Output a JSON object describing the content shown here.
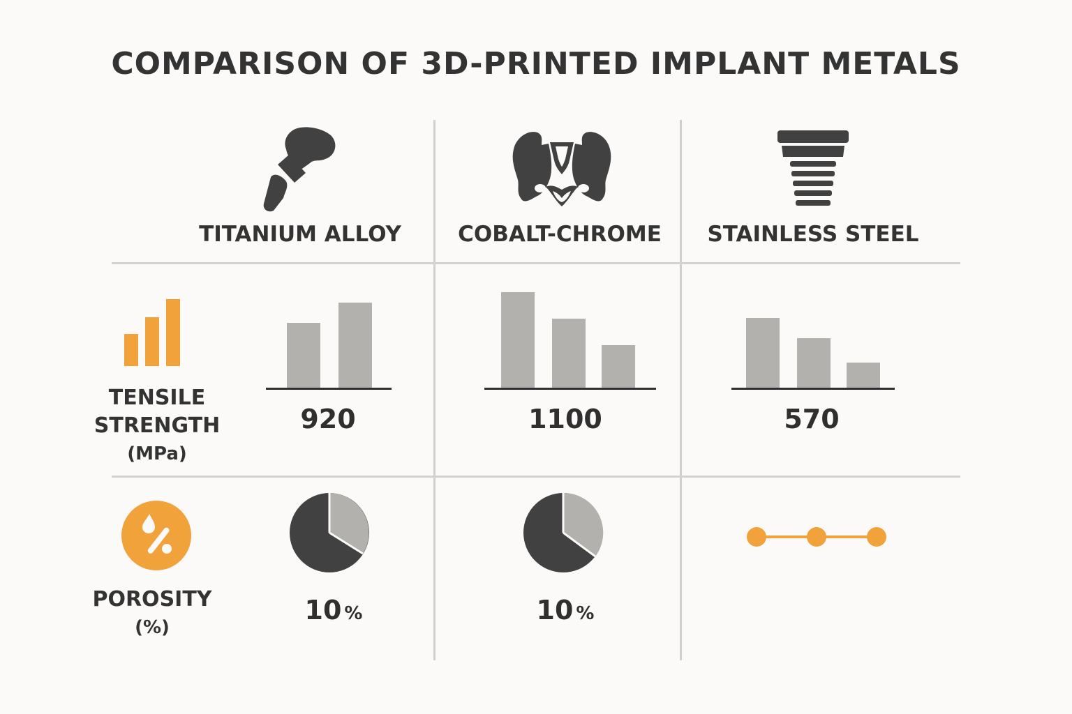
{
  "title": "COMPARISON OF 3D-PRINTED IMPLANT METALS",
  "materials": [
    {
      "name": "TITANIUM ALLOY",
      "icon": "hip-implant-icon"
    },
    {
      "name": "COBALT-CHROME",
      "icon": "pelvis-icon"
    },
    {
      "name": "STAINLESS STEEL",
      "icon": "screw-implant-icon"
    }
  ],
  "row_labels": {
    "tensile": {
      "line1": "TENSILE",
      "line2": "STRENGTH",
      "unit": "(MPa)",
      "icon": "bar-chart-icon"
    },
    "porosity": {
      "line1": "POROSITY",
      "unit": "(%)",
      "icon": "percent-drop-icon"
    }
  },
  "values": {
    "tensile": [
      "920",
      "1100",
      "570"
    ],
    "porosity": [
      "10",
      "10"
    ],
    "porosity_unit": "%"
  },
  "colors": {
    "accent": "#f2a23b",
    "dark": "#414141",
    "bar": "#b3b1ad",
    "grid": "#d2d2d2"
  },
  "chart_data": [
    {
      "type": "bar",
      "title": "",
      "series": [
        {
          "values": [
            920,
            1100,
            570
          ]
        }
      ],
      "categories": [
        "TITANIUM ALLOY",
        "COBALT-CHROME",
        "STAINLESS STEEL"
      ],
      "ylabel": "TENSILE STRENGTH (MPa)"
    },
    {
      "type": "pie",
      "title": "POROSITY (%)",
      "pies": [
        {
          "category": "TITANIUM ALLOY",
          "value": 10,
          "slice_fractions": [
            0.67,
            0.33
          ]
        },
        {
          "category": "COBALT-CHROME",
          "value": 10,
          "slice_fractions": [
            0.64,
            0.36
          ]
        }
      ],
      "stainless_steel_marker": "line with three dots"
    }
  ]
}
